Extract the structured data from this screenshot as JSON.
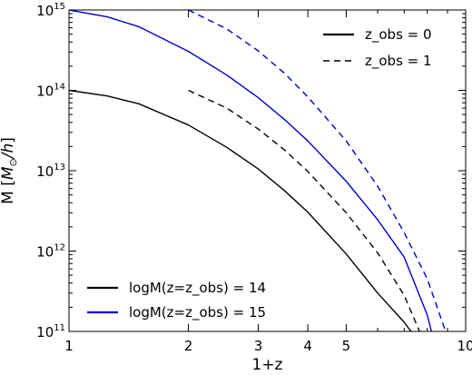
{
  "chart_data": {
    "type": "line",
    "xscale": "log",
    "yscale": "log",
    "xlim": [
      1,
      10
    ],
    "ylim": [
      100000000000.0,
      1000000000000000.0
    ],
    "xlabel": "1+z",
    "ylabel": {
      "prefix": "M [",
      "math_M": "M",
      "math_sub": "⊙",
      "math_rest": "/h",
      "suffix": "]"
    },
    "xticks": [
      {
        "value": 1,
        "label": "1"
      },
      {
        "value": 2,
        "label": "2"
      },
      {
        "value": 3,
        "label": "3"
      },
      {
        "value": 4,
        "label": "4"
      },
      {
        "value": 5,
        "label": "5"
      },
      {
        "value": 10,
        "label": "10"
      }
    ],
    "yticks": [
      {
        "value": 100000000000.0,
        "base": "10",
        "exp": "11"
      },
      {
        "value": 1000000000000.0,
        "base": "10",
        "exp": "12"
      },
      {
        "value": 10000000000000.0,
        "base": "10",
        "exp": "13"
      },
      {
        "value": 100000000000000.0,
        "base": "10",
        "exp": "14"
      },
      {
        "value": 1000000000000000.0,
        "base": "10",
        "exp": "15"
      }
    ],
    "grid": false,
    "series": [
      {
        "color": "#000000",
        "dash": "solid",
        "x": [
          1.0,
          1.25,
          1.5,
          2.0,
          2.5,
          3.0,
          3.5,
          4.0,
          5.0,
          6.0,
          7.0,
          7.28
        ],
        "y": [
          100000000000000.0,
          85000000000000.0,
          68000000000000.0,
          37000000000000.0,
          19500000000000.0,
          10500000000000.0,
          5600000000000.0,
          3050000000000.0,
          920000000000.0,
          300000000000.0,
          130000000000.0,
          100000000000.0
        ]
      },
      {
        "color": "#0000cc",
        "dash": "solid",
        "x": [
          1.0,
          1.25,
          1.5,
          2.0,
          2.5,
          3.0,
          3.5,
          4.0,
          5.0,
          6.0,
          7.0,
          8.0,
          8.2
        ],
        "y": [
          1000000000000000.0,
          820000000000000.0,
          620000000000000.0,
          305000000000000.0,
          155000000000000.0,
          81000000000000.0,
          43000000000000.0,
          23500000000000.0,
          7400000000000.0,
          2450000000000.0,
          840000000000.0,
          160000000000.0,
          100000000000.0
        ]
      },
      {
        "color": "#000000",
        "dash": "dashed",
        "x": [
          2.0,
          2.5,
          3.0,
          3.5,
          4.0,
          5.0,
          6.0,
          7.0,
          7.65
        ],
        "y": [
          100000000000000.0,
          60000000000000.0,
          33000000000000.0,
          18000000000000.0,
          9800000000000.0,
          3000000000000.0,
          950000000000.0,
          280000000000.0,
          100000000000.0
        ]
      },
      {
        "color": "#0000cc",
        "dash": "dashed",
        "x": [
          2.0,
          2.5,
          3.0,
          3.5,
          4.0,
          5.0,
          6.0,
          7.0,
          8.0,
          8.9
        ],
        "y": [
          1000000000000000.0,
          580000000000000.0,
          310000000000000.0,
          162000000000000.0,
          83000000000000.0,
          23500000000000.0,
          6400000000000.0,
          1700000000000.0,
          450000000000.0,
          100000000000.0
        ]
      }
    ],
    "legends": [
      {
        "position": "top-right",
        "entries": [
          {
            "label": "z_obs = 0",
            "color": "#000000",
            "dash": "solid"
          },
          {
            "label": "z_obs = 1",
            "color": "#000000",
            "dash": "dashed"
          }
        ]
      },
      {
        "position": "bottom-left",
        "entries": [
          {
            "label": "logM(z=z_obs) = 14",
            "color": "#000000",
            "dash": "solid"
          },
          {
            "label": "logM(z=z_obs) = 15",
            "color": "#0000cc",
            "dash": "solid"
          }
        ]
      }
    ]
  }
}
